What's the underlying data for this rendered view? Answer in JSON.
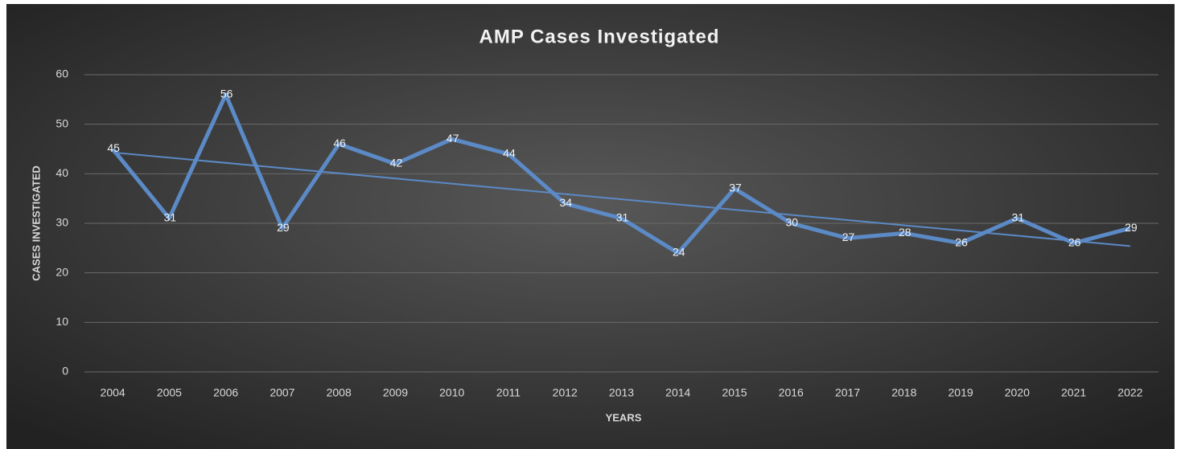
{
  "chart_data": {
    "type": "line",
    "title": "AMP Cases Investigated",
    "x_label": "YEARS",
    "y_label": "CASES INVESTIGATED",
    "categories": [
      "2004",
      "2005",
      "2006",
      "2007",
      "2008",
      "2009",
      "2010",
      "2011",
      "2012",
      "2013",
      "2014",
      "2015",
      "2016",
      "2017",
      "2018",
      "2019",
      "2020",
      "2021",
      "2022"
    ],
    "series": [
      {
        "name": "Cases Investigated",
        "color": "#5b8ac6",
        "values": [
          45,
          31,
          56,
          29,
          46,
          42,
          47,
          44,
          34,
          31,
          24,
          37,
          30,
          27,
          28,
          26,
          31,
          26,
          29
        ]
      }
    ],
    "trendline": {
      "type": "linear",
      "color": "#5b8ac6",
      "values": [
        44.3,
        25.4
      ]
    },
    "ylim": [
      0,
      60
    ],
    "yticks": [
      0,
      10,
      20,
      30,
      40,
      50,
      60
    ],
    "grid": true,
    "data_labels": true
  }
}
